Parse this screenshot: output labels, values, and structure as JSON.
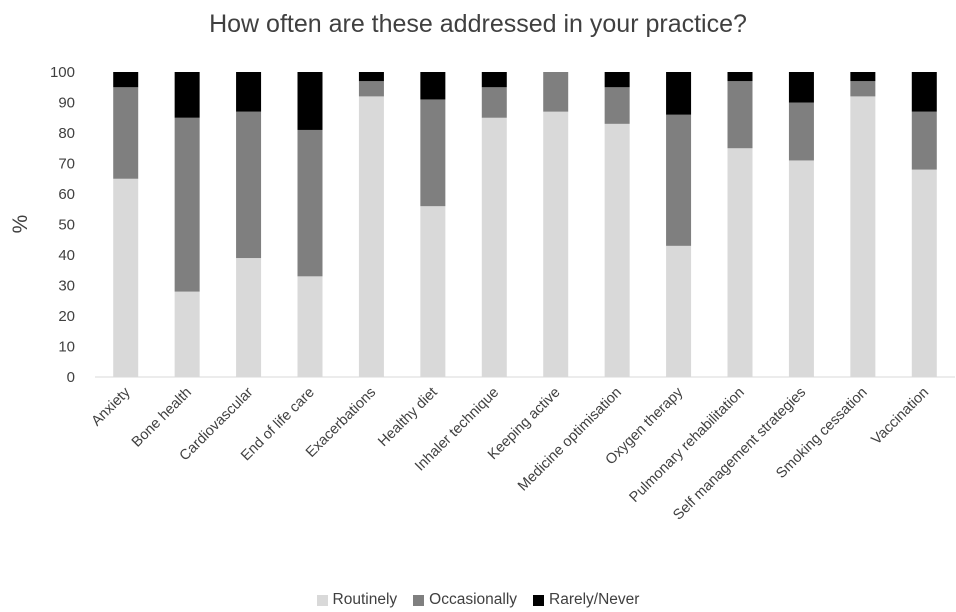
{
  "chart_data": {
    "type": "bar",
    "stacked": true,
    "title": "How often are these addressed in your practice?",
    "xlabel": "",
    "ylabel": "%",
    "ylim": [
      0,
      100
    ],
    "yticks": [
      0,
      10,
      20,
      30,
      40,
      50,
      60,
      70,
      80,
      90,
      100
    ],
    "grid": false,
    "legend_position": "bottom",
    "categories": [
      "Anxiety",
      "Bone health",
      "Cardiovascular",
      "End of life care",
      "Exacerbations",
      "Healthy diet",
      "Inhaler technique",
      "Keeping active",
      "Medicine optimisation",
      "Oxygen therapy",
      "Pulmonary rehabilitation",
      "Self management strategies",
      "Smoking cessation",
      "Vaccination"
    ],
    "series": [
      {
        "name": "Routinely",
        "color": "#d9d9d9",
        "values": [
          65,
          28,
          39,
          33,
          92,
          56,
          85,
          87,
          83,
          43,
          75,
          71,
          92,
          68
        ]
      },
      {
        "name": "Occasionally",
        "color": "#7f7f7f",
        "values": [
          30,
          57,
          48,
          48,
          5,
          35,
          10,
          13,
          12,
          43,
          22,
          19,
          5,
          19
        ]
      },
      {
        "name": "Rarely/Never",
        "color": "#000000",
        "values": [
          5,
          15,
          13,
          19,
          3,
          9,
          5,
          0.5,
          5,
          14,
          3,
          10,
          3,
          13
        ]
      }
    ]
  }
}
